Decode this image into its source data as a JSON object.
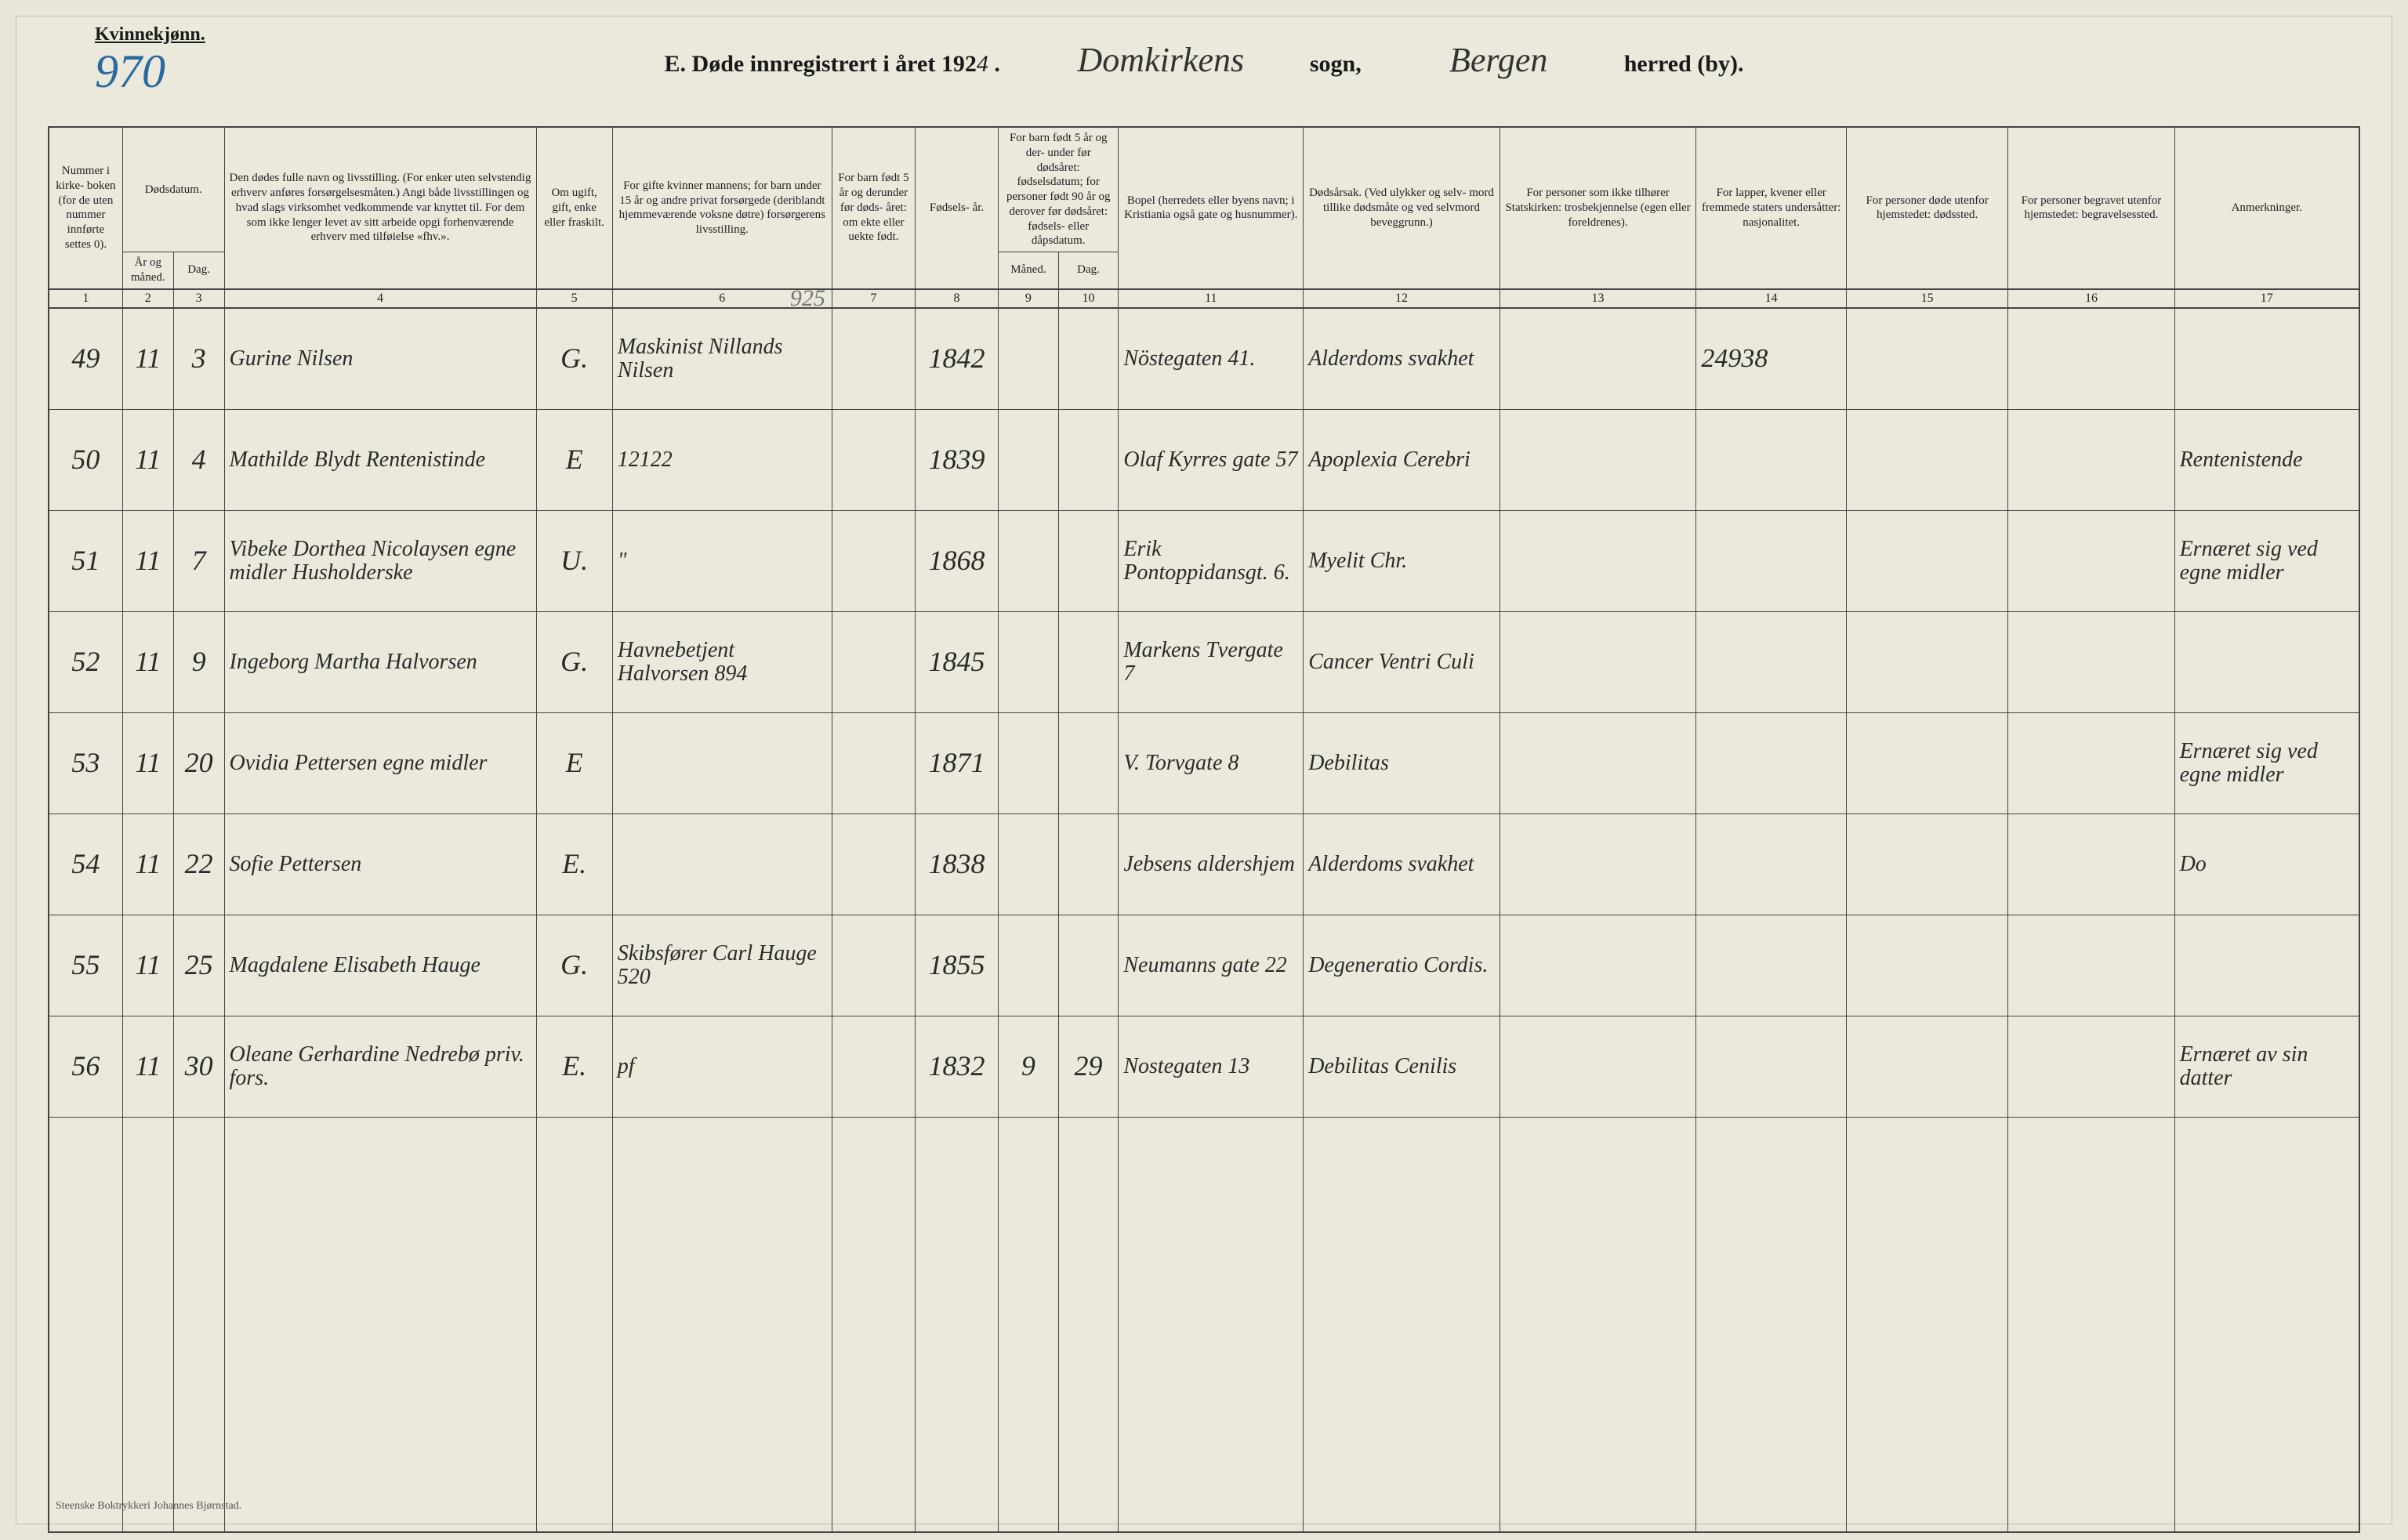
{
  "header": {
    "corner_label": "Kvinnekjønn.",
    "corner_number": "970",
    "title_prefix": "E.  Døde innregistrert i året 192",
    "title_year_suffix": "4",
    "title_period": " .",
    "sogn_value": "Domkirkens",
    "sogn_label": "sogn,",
    "herred_value": "Bergen",
    "herred_label": "herred (by)."
  },
  "columns": {
    "widths_pct": [
      3.2,
      2.2,
      2.2,
      13.5,
      3.3,
      9.5,
      3.6,
      3.6,
      2.6,
      2.6,
      8.0,
      8.5,
      8.5,
      6.5,
      7.0,
      7.2,
      8.0
    ],
    "headers": {
      "c1": "Nummer i kirke- boken (for de uten nummer innførte settes 0).",
      "c2_top": "Dødsdatum.",
      "c2a": "År og måned.",
      "c2b": "Dag.",
      "c4": "Den dødes fulle navn og livsstilling. (For enker uten selvstendig erhverv anføres forsørgelsesmåten.) Angi både livsstillingen og hvad slags virksomhet vedkommende var knyttet til. For dem som ikke lenger levet av sitt arbeide opgi forhenværende erhverv med tilføielse «fhv.».",
      "c5": "Om ugift, gift, enke eller fraskilt.",
      "c6": "For gifte kvinner mannens; for barn under 15 år og andre privat forsørgede (deriblandt hjemmeværende voksne døtre) forsørgerens livsstilling.",
      "c7": "For barn født 5 år og derunder før døds- året: om ekte eller uekte født.",
      "c8": "Fødsels- år.",
      "c9_top": "For barn født 5 år og der- under før dødsåret: fødselsdatum; for personer født 90 år og derover før dødsåret: fødsels- eller dåpsdatum.",
      "c9a": "Måned.",
      "c9b": "Dag.",
      "c11": "Bopel (herredets eller byens navn; i Kristiania også gate og husnummer).",
      "c12": "Dødsårsak. (Ved ulykker og selv- mord tillike dødsmåte og ved selvmord beveggrunn.)",
      "c13": "For personer som ikke tilhører Statskirken: trosbekjennelse (egen eller foreldrenes).",
      "c14": "For lapper, kvener eller fremmede staters undersåtter: nasjonalitet.",
      "c15": "For personer døde utenfor hjemstedet: dødssted.",
      "c16": "For personer begravet utenfor hjemstedet: begravelsessted.",
      "c17": "Anmerkninger."
    },
    "numbers": [
      "1",
      "2",
      "3",
      "4",
      "5",
      "6",
      "7",
      "8",
      "9",
      "10",
      "11",
      "12",
      "13",
      "14",
      "15",
      "16",
      "17"
    ],
    "c6_written_top": "925"
  },
  "rows": [
    {
      "c1": "49",
      "c2a": "11",
      "c2b": "3",
      "c4": "Gurine Nilsen",
      "c5": "G.",
      "c6": "Maskinist Nillands Nilsen",
      "c7": "",
      "c8": "1842",
      "c9a": "",
      "c9b": "",
      "c11": "Nöstegaten 41.",
      "c12": "Alderdoms svakhet",
      "c13": "",
      "c14": "24938",
      "c15": "",
      "c16": "",
      "c17": ""
    },
    {
      "c1": "50",
      "c2a": "11",
      "c2b": "4",
      "c4": "Mathilde Blydt Rentenistinde",
      "c5": "E",
      "c6": "12122",
      "c7": "",
      "c8": "1839",
      "c9a": "",
      "c9b": "",
      "c11": "Olaf Kyrres gate 57",
      "c12": "Apoplexia Cerebri",
      "c13": "",
      "c14": "",
      "c15": "",
      "c16": "",
      "c17": "Rentenistende"
    },
    {
      "c1": "51",
      "c2a": "11",
      "c2b": "7",
      "c4": "Vibeke Dorthea Nicolaysen  egne midler Husholderske",
      "c5": "U.",
      "c6": "\"",
      "c7": "",
      "c8": "1868",
      "c9a": "",
      "c9b": "",
      "c11": "Erik Pontoppidansgt. 6.",
      "c12": "Myelit Chr.",
      "c13": "",
      "c14": "",
      "c15": "",
      "c16": "",
      "c17": "Ernæret sig ved egne midler"
    },
    {
      "c1": "52",
      "c2a": "11",
      "c2b": "9",
      "c4": "Ingeborg Martha Halvorsen",
      "c5": "G.",
      "c6": "Havnebetjent Halvorsen 894",
      "c7": "",
      "c8": "1845",
      "c9a": "",
      "c9b": "",
      "c11": "Markens Tvergate 7",
      "c12": "Cancer Ventri Culi",
      "c13": "",
      "c14": "",
      "c15": "",
      "c16": "",
      "c17": ""
    },
    {
      "c1": "53",
      "c2a": "11",
      "c2b": "20",
      "c4": "Ovidia Pettersen egne midler",
      "c5": "E",
      "c6": "",
      "c7": "",
      "c8": "1871",
      "c9a": "",
      "c9b": "",
      "c11": "V. Torvgate 8",
      "c12": "Debilitas",
      "c13": "",
      "c14": "",
      "c15": "",
      "c16": "",
      "c17": "Ernæret sig ved egne midler"
    },
    {
      "c1": "54",
      "c2a": "11",
      "c2b": "22",
      "c4": "Sofie Pettersen",
      "c5": "E.",
      "c6": "",
      "c7": "",
      "c8": "1838",
      "c9a": "",
      "c9b": "",
      "c11": "Jebsens aldershjem",
      "c12": "Alderdoms svakhet",
      "c13": "",
      "c14": "",
      "c15": "",
      "c16": "",
      "c17": "Do"
    },
    {
      "c1": "55",
      "c2a": "11",
      "c2b": "25",
      "c4": "Magdalene Elisabeth Hauge",
      "c5": "G.",
      "c6": "Skibsfører Carl Hauge 520",
      "c7": "",
      "c8": "1855",
      "c9a": "",
      "c9b": "",
      "c11": "Neumanns gate 22",
      "c12": "Degeneratio Cordis.",
      "c13": "",
      "c14": "",
      "c15": "",
      "c16": "",
      "c17": ""
    },
    {
      "c1": "56",
      "c2a": "11",
      "c2b": "30",
      "c4": "Oleane Gerhardine Nedrebø  priv. fors.",
      "c5": "E.",
      "c6": "pf",
      "c7": "",
      "c8": "1832",
      "c9a": "9",
      "c9b": "29",
      "c11": "Nostegaten 13",
      "c12": "Debilitas Cenilis",
      "c13": "",
      "c14": "",
      "c15": "",
      "c16": "",
      "c17": "Ernæret av sin datter"
    }
  ],
  "footer": {
    "printer": "Steenske Boktrykkeri Johannes Bjørnstad."
  }
}
